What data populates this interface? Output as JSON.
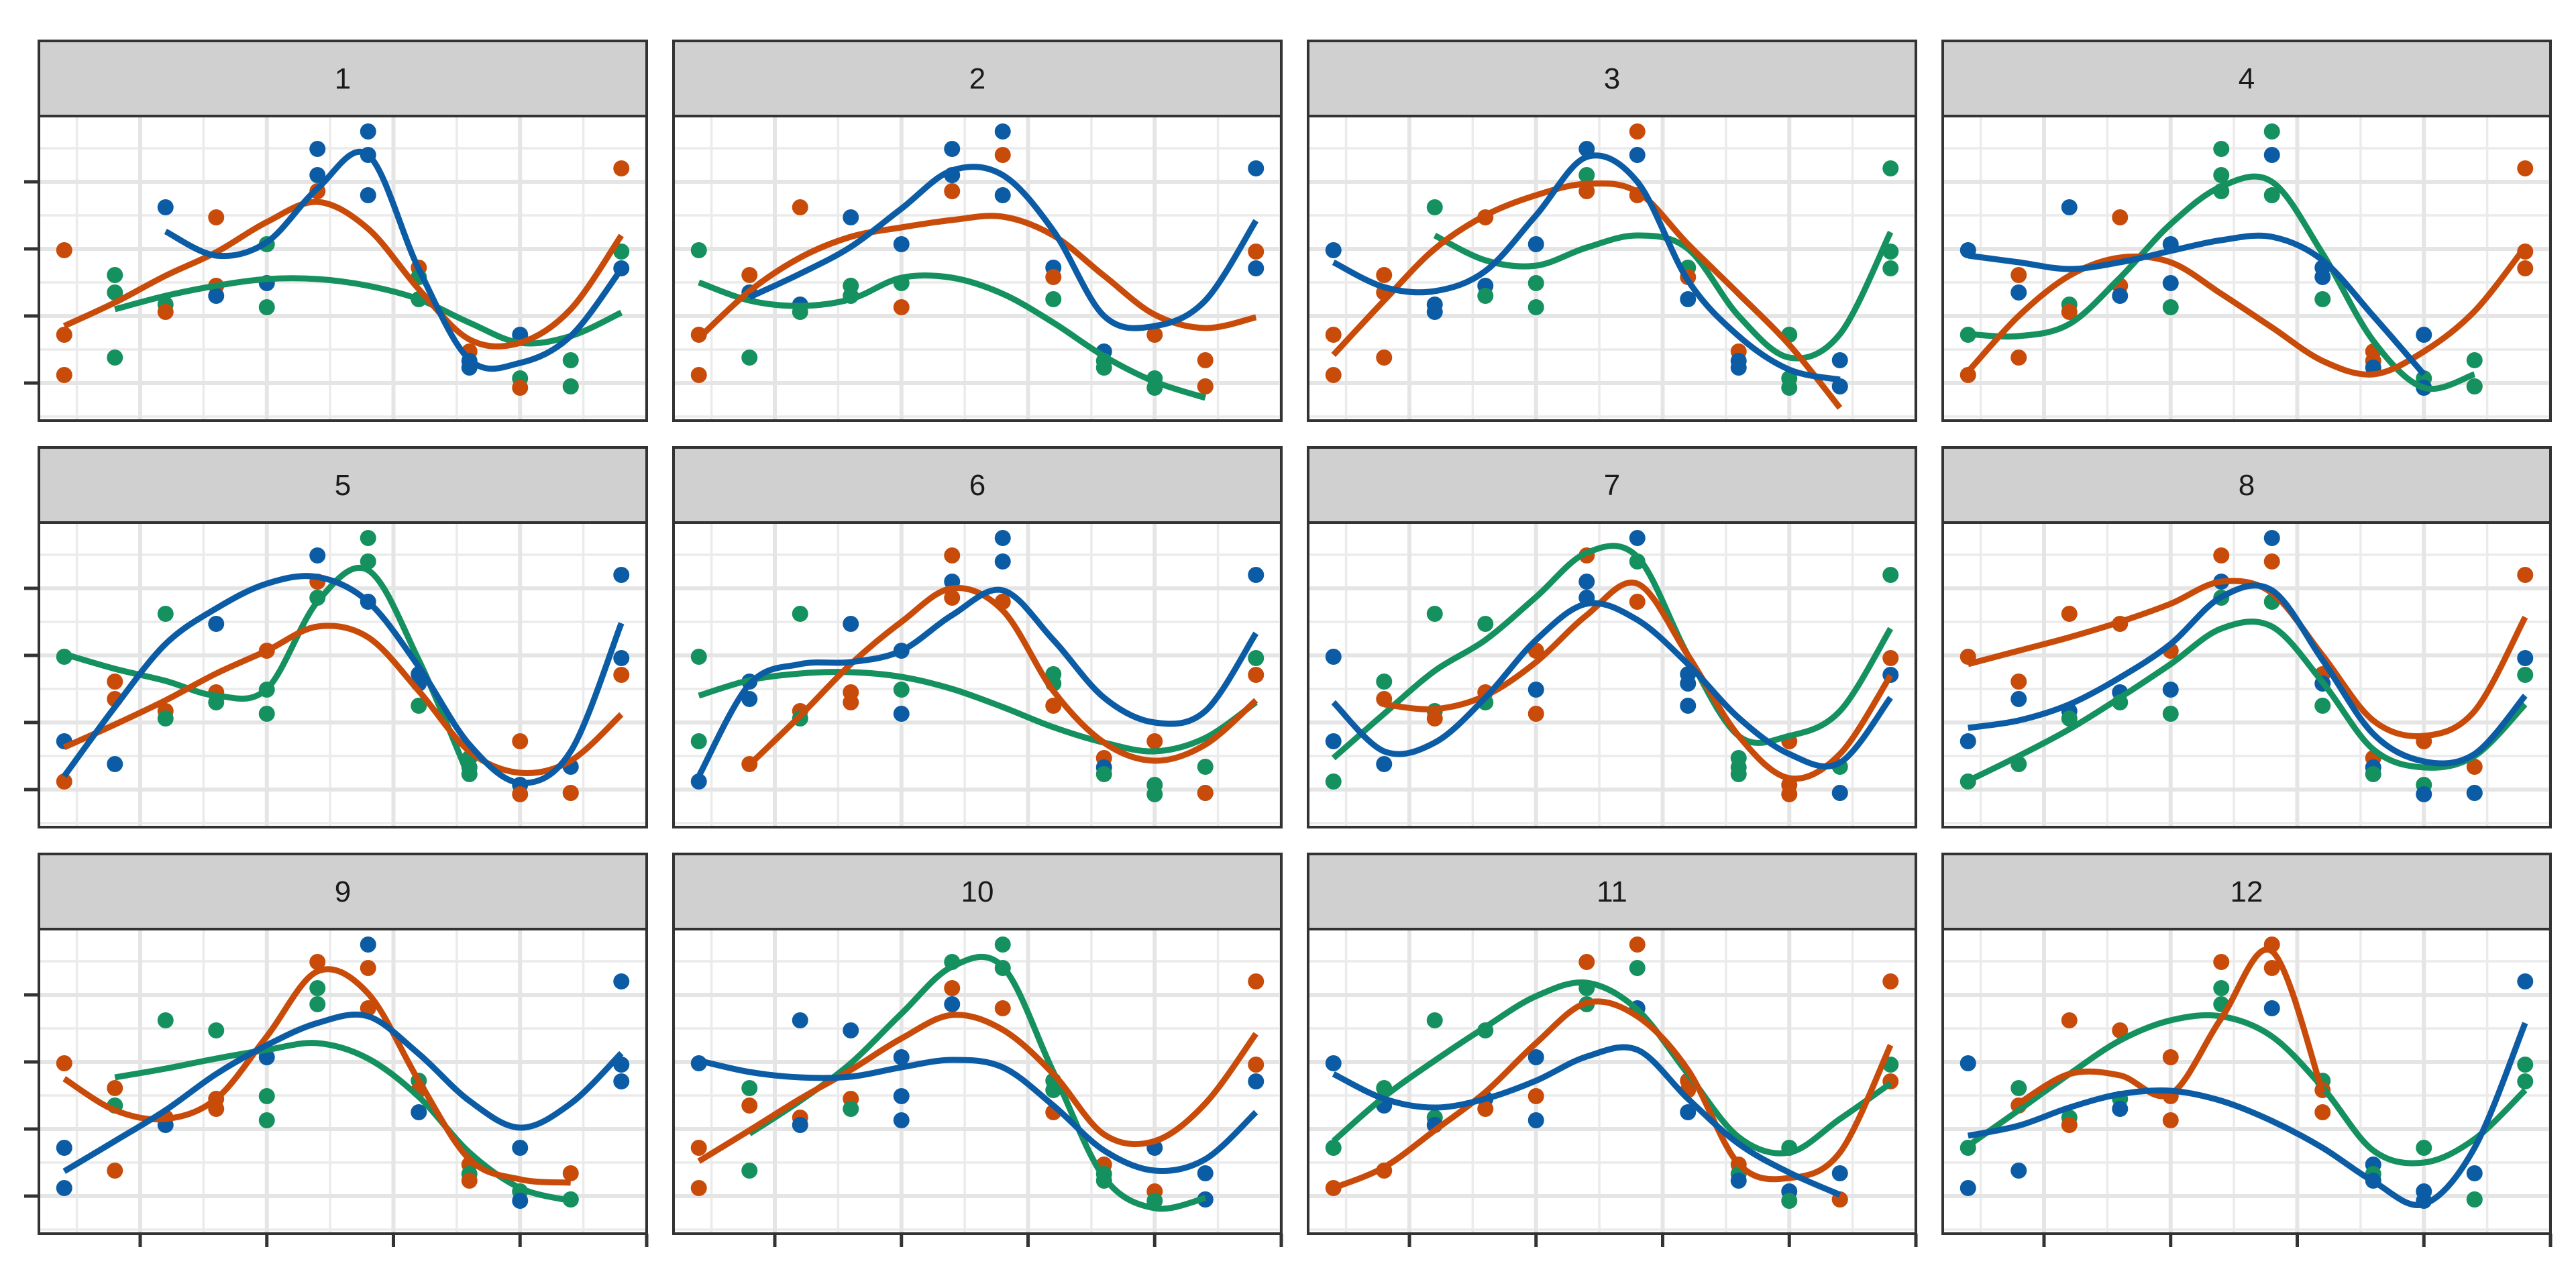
{
  "chart_data": {
    "type": "scatter",
    "subtype": "faceted scatter with smoothed lines",
    "title": "",
    "xlabel": "",
    "ylabel": "",
    "xlim": [
      0.5,
      12.5
    ],
    "ylim": [
      0.44,
      4.98
    ],
    "x_major_ticks": [
      2.5,
      5,
      7.5,
      10,
      12.5
    ],
    "x_minor_grid": [
      1.25,
      3.75,
      6.25,
      8.75,
      11.25
    ],
    "y_major_ticks": [
      1,
      2,
      3,
      4
    ],
    "y_minor_grid": [
      0.5,
      1.5,
      2.5,
      3.5,
      4.5
    ],
    "tick_labels_shown": false,
    "grid": true,
    "legend": "none",
    "facet_layout": {
      "rows": 3,
      "cols": 4
    },
    "series_colors": {
      "O": "#C84B0A",
      "B": "#0B5CA4",
      "G": "#15905F"
    },
    "strip_fill": "#D0D0D0",
    "points_x": [
      1,
      2,
      3,
      4,
      5,
      6,
      7,
      8,
      9,
      10,
      11,
      12
    ],
    "points_y": [
      [
        2.98,
        1.72,
        1.12
      ],
      [
        2.61,
        2.35,
        1.38
      ],
      [
        3.62,
        2.17,
        2.06
      ],
      [
        3.47,
        2.45,
        2.3
      ],
      [
        3.07,
        2.49,
        2.13
      ],
      [
        4.49,
        4.1,
        3.86
      ],
      [
        4.75,
        4.4,
        3.8
      ],
      [
        2.72,
        2.58,
        2.25
      ],
      [
        1.47,
        1.33,
        1.23
      ],
      [
        1.72,
        1.07,
        0.93
      ],
      [
        1.34,
        0.95,
        0.95
      ],
      [
        4.2,
        2.96,
        2.71
      ]
    ],
    "panels": [
      {
        "label": "1",
        "point_groups": [
          "OOO",
          "GGG",
          "BGO",
          "OOB",
          "GBG",
          "BBO",
          "BBB",
          "OGG",
          "OBB",
          "BGO",
          "GOG",
          "OGB"
        ],
        "smooth": {
          "O": {
            "x_start": 1,
            "y": [
              1.85,
              2.2,
              2.6,
              2.95,
              3.4,
              3.7,
              3.3,
              2.4,
              1.65,
              1.6,
              2.1,
              3.2
            ]
          },
          "B": {
            "x_start": 3,
            "y": [
              3.26,
              2.9,
              3.1,
              3.9,
              4.4,
              2.7,
              1.35,
              1.3,
              1.7,
              2.7
            ]
          },
          "G": {
            "x_start": 2,
            "y": [
              2.1,
              2.3,
              2.45,
              2.55,
              2.55,
              2.45,
              2.25,
              1.9,
              1.6,
              1.7,
              2.05
            ]
          }
        }
      },
      {
        "label": "2",
        "point_groups": [
          "GOO",
          "OBG",
          "OBG",
          "BGG",
          "BGO",
          "BBO",
          "BOB",
          "BOG",
          "BGG",
          "OGG",
          "OGO",
          "BOB"
        ],
        "smooth": {
          "O": {
            "x_start": 1,
            "y": [
              1.67,
              2.37,
              2.87,
              3.18,
              3.32,
              3.43,
              3.48,
              3.2,
              2.6,
              2.02,
              1.82,
              1.98
            ]
          },
          "B": {
            "x_start": 2,
            "y": [
              2.28,
              2.63,
              3.03,
              3.6,
              4.17,
              4.1,
              3.27,
              2.0,
              1.85,
              2.23,
              3.42
            ]
          },
          "G": {
            "x_start": 1,
            "y": [
              2.5,
              2.23,
              2.15,
              2.25,
              2.57,
              2.57,
              2.33,
              1.9,
              1.4,
              1.02,
              0.78
            ]
          }
        }
      },
      {
        "label": "3",
        "point_groups": [
          "BOO",
          "OOO",
          "GBB",
          "OBG",
          "BGG",
          "BGO",
          "OBO",
          "GOB",
          "OBB",
          "GGG",
          "BOB",
          "GGG"
        ],
        "smooth": {
          "O": {
            "x_start": 1,
            "y": [
              1.42,
              2.23,
              3.0,
              3.5,
              3.8,
              3.97,
              3.85,
              3.07,
              2.33,
              1.57,
              0.63
            ]
          },
          "B": {
            "x_start": 1,
            "y": [
              2.8,
              2.43,
              2.37,
              2.67,
              3.5,
              4.37,
              4.0,
              2.53,
              1.7,
              1.2,
              1.05
            ]
          },
          "G": {
            "x_start": 3,
            "y": [
              3.2,
              2.83,
              2.75,
              3.02,
              3.2,
              3.0,
              2.0,
              1.38,
              1.73,
              3.25
            ]
          }
        }
      },
      {
        "label": "4",
        "point_groups": [
          "BGO",
          "OBO",
          "BGO",
          "OOB",
          "BBG",
          "GGG",
          "GBG",
          "BBG",
          "OOB",
          "BGB",
          "GOG",
          "OOO"
        ],
        "smooth": {
          "O": {
            "x_start": 1,
            "y": [
              1.17,
              2.0,
              2.6,
              2.87,
              2.8,
              2.33,
              1.83,
              1.33,
              1.13,
              1.47,
              2.07,
              3.03
            ]
          },
          "B": {
            "x_start": 1,
            "y": [
              2.9,
              2.8,
              2.7,
              2.8,
              2.97,
              3.13,
              3.18,
              2.83,
              2.0,
              1.13
            ]
          },
          "G": {
            "x_start": 1,
            "y": [
              1.73,
              1.7,
              1.88,
              2.57,
              3.37,
              3.93,
              4.0,
              2.93,
              1.63,
              0.93,
              1.13
            ]
          }
        }
      },
      {
        "label": "5",
        "point_groups": [
          "GBO",
          "OOB",
          "GOG",
          "BOG",
          "OGG",
          "BOG",
          "GGB",
          "BBG",
          "GGG",
          "OBO",
          "BOO",
          "BBO"
        ],
        "smooth": {
          "O": {
            "x_start": 1,
            "y": [
              1.63,
              1.97,
              2.33,
              2.73,
              3.07,
              3.43,
              3.27,
              2.47,
              1.57,
              1.25,
              1.43,
              2.12
            ]
          },
          "B": {
            "x_start": 1,
            "y": [
              1.2,
              2.23,
              3.17,
              3.7,
              4.07,
              4.17,
              3.8,
              2.83,
              1.67,
              1.1,
              1.57,
              3.48
            ]
          },
          "G": {
            "x_start": 1,
            "y": [
              3.02,
              2.8,
              2.62,
              2.4,
              2.5,
              3.8,
              4.27,
              2.93,
              1.17
            ]
          }
        }
      },
      {
        "label": "6",
        "point_groups": [
          "GGB",
          "BBO",
          "GOG",
          "BOO",
          "BGB",
          "OBO",
          "BBO",
          "GGO",
          "OBG",
          "OGG",
          "GBO",
          "BGO"
        ],
        "smooth": {
          "O": {
            "x_start": 2,
            "y": [
              1.37,
              2.1,
              2.87,
              3.5,
              4.0,
              3.67,
              2.47,
              1.7,
              1.43,
              1.67,
              2.33
            ]
          },
          "B": {
            "x_start": 1,
            "y": [
              1.2,
              2.57,
              2.87,
              2.9,
              3.07,
              3.6,
              3.97,
              3.23,
              2.37,
              2.0,
              2.17,
              3.33
            ]
          },
          "G": {
            "x_start": 1,
            "y": [
              2.4,
              2.63,
              2.73,
              2.75,
              2.68,
              2.5,
              2.23,
              1.93,
              1.7,
              1.57,
              1.77,
              2.3
            ]
          }
        }
      },
      {
        "label": "7",
        "point_groups": [
          "BBG",
          "GOB",
          "GGO",
          "GOG",
          "OBO",
          "OBB",
          "BGO",
          "BBB",
          "GGG",
          "OOO",
          "GOB",
          "GOB"
        ],
        "smooth": {
          "O": {
            "x_start": 2,
            "y": [
              2.27,
              2.2,
              2.4,
              2.9,
              3.6,
              4.07,
              3.0,
              1.8,
              1.17,
              1.53,
              2.7
            ]
          },
          "B": {
            "x_start": 1,
            "y": [
              2.3,
              1.57,
              1.7,
              2.37,
              3.23,
              3.77,
              3.53,
              2.87,
              2.07,
              1.53,
              1.4,
              2.37
            ]
          },
          "G": {
            "x_start": 1,
            "y": [
              1.47,
              2.13,
              2.77,
              3.23,
              3.87,
              4.53,
              4.47,
              3.0,
              1.8,
              1.8,
              2.17,
              3.4
            ]
          }
        }
      },
      {
        "label": "8",
        "point_groups": [
          "OBG",
          "OBG",
          "OBG",
          "OBG",
          "OBG",
          "OBG",
          "BOG",
          "OBG",
          "OBG",
          "OGB",
          "OGB",
          "OBG"
        ],
        "smooth": {
          "O": {
            "x_start": 1,
            "y": [
              2.87,
              3.07,
              3.27,
              3.5,
              3.77,
              4.1,
              3.93,
              3.0,
              2.03,
              1.8,
              2.17,
              3.57
            ]
          },
          "B": {
            "x_start": 1,
            "y": [
              1.92,
              2.03,
              2.27,
              2.67,
              3.17,
              3.87,
              3.97,
              2.93,
              1.83,
              1.42,
              1.53,
              2.4
            ]
          },
          "G": {
            "x_start": 1,
            "y": [
              1.13,
              1.5,
              1.9,
              2.37,
              2.87,
              3.4,
              3.43,
              2.6,
              1.6,
              1.33,
              1.5,
              2.27
            ]
          }
        }
      },
      {
        "label": "9",
        "point_groups": [
          "OBB",
          "OGO",
          "GOB",
          "GOO",
          "BGG",
          "OGG",
          "BOO",
          "GOB",
          "OGO",
          "BGB",
          "OGG",
          "BBB"
        ],
        "smooth": {
          "O": {
            "x_start": 1,
            "y": [
              2.75,
              2.28,
              2.15,
              2.45,
              3.38,
              4.35,
              4.02,
              2.72,
              1.55,
              1.25,
              1.2
            ]
          },
          "B": {
            "x_start": 1,
            "y": [
              1.37,
              1.82,
              2.28,
              2.82,
              3.25,
              3.58,
              3.68,
              3.12,
              2.42,
              2.02,
              2.38,
              3.13
            ]
          },
          "G": {
            "x_start": 2,
            "y": [
              2.77,
              2.9,
              3.05,
              3.18,
              3.28,
              3.05,
              2.48,
              1.65,
              1.12,
              0.93
            ]
          }
        }
      },
      {
        "label": "10",
        "point_groups": [
          "BOO",
          "GOG",
          "BOB",
          "BOG",
          "BBB",
          "GOB",
          "GGO",
          "GGO",
          "OGG",
          "BOG",
          "BBB",
          "OOB"
        ],
        "smooth": {
          "O": {
            "x_start": 1,
            "y": [
              1.52,
              1.98,
              2.45,
              2.88,
              3.35,
              3.7,
              3.48,
              2.82,
              1.92,
              1.82,
              2.38,
              3.42
            ]
          },
          "B": {
            "x_start": 1,
            "y": [
              3.02,
              2.85,
              2.77,
              2.78,
              2.92,
              3.03,
              2.92,
              2.35,
              1.68,
              1.38,
              1.55,
              2.25
            ]
          },
          "G": {
            "x_start": 2,
            "y": [
              1.93,
              2.42,
              2.98,
              3.72,
              4.42,
              4.42,
              2.85,
              1.28,
              0.82,
              0.97
            ]
          }
        }
      },
      {
        "label": "11",
        "point_groups": [
          "BGO",
          "GBO",
          "GGB",
          "GBO",
          "BOB",
          "OGG",
          "OGB",
          "OOB",
          "OGB",
          "GBG",
          "BBO",
          "OGO"
        ],
        "smooth": {
          "O": {
            "x_start": 1,
            "y": [
              1.12,
              1.43,
              1.98,
              2.55,
              3.28,
              3.88,
              3.68,
              2.88,
              1.48,
              1.27,
              1.65,
              3.25
            ]
          },
          "B": {
            "x_start": 1,
            "y": [
              2.82,
              2.45,
              2.32,
              2.45,
              2.72,
              3.08,
              3.18,
              2.45,
              1.78,
              1.35,
              1.02
            ]
          },
          "G": {
            "x_start": 1,
            "y": [
              1.82,
              2.48,
              3.02,
              3.52,
              3.98,
              4.18,
              3.78,
              2.82,
              1.88,
              1.65,
              2.15,
              2.68
            ]
          }
        }
      },
      {
        "label": "12",
        "point_groups": [
          "BGB",
          "GOB",
          "OGO",
          "OGB",
          "OOO",
          "OGG",
          "OOB",
          "GOO",
          "BGB",
          "GBB",
          "BGG",
          "BGG"
        ],
        "smooth": {
          "O": {
            "x_start": 2,
            "y": [
              2.38,
              2.82,
              2.8,
              2.52,
              3.65,
              4.65,
              2.55
            ]
          },
          "B": {
            "x_start": 1,
            "y": [
              1.9,
              2.05,
              2.32,
              2.52,
              2.57,
              2.42,
              2.12,
              1.72,
              1.22,
              0.88,
              1.72,
              3.58
            ]
          },
          "G": {
            "x_start": 1,
            "y": [
              1.75,
              2.28,
              2.82,
              3.32,
              3.62,
              3.68,
              3.38,
              2.62,
              1.68,
              1.5,
              1.85,
              2.58
            ]
          }
        }
      }
    ]
  }
}
